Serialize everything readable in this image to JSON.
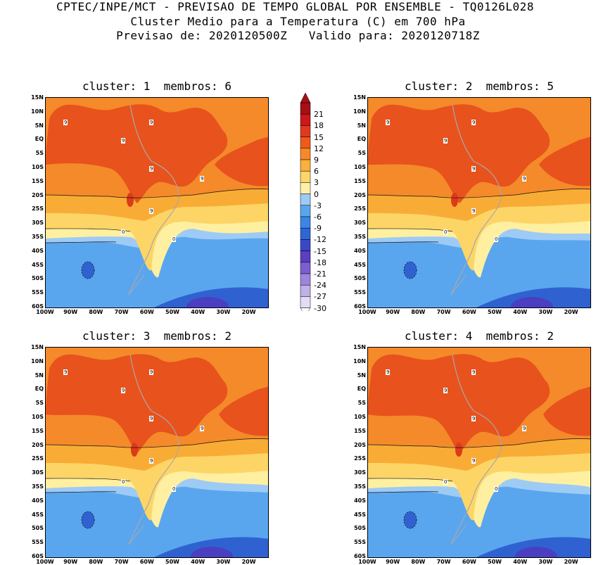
{
  "header": {
    "line1": "CPTEC/INPE/MCT - PREVISAO DE TEMPO GLOBAL POR ENSEMBLE - TQ0126L028",
    "line2": "Cluster Medio para a Temperatura (C) em 700 hPa",
    "line3": "Previsao de: 2020120500Z   Valido para: 2020120718Z"
  },
  "panels": [
    {
      "title": "cluster: 1  membros: 6"
    },
    {
      "title": "cluster: 2  membros: 5"
    },
    {
      "title": "cluster: 3  membros: 2"
    },
    {
      "title": "cluster: 4  membros: 2"
    }
  ],
  "axes": {
    "lat_labels": [
      "15N",
      "10N",
      "5N",
      "EQ",
      "5S",
      "10S",
      "15S",
      "20S",
      "25S",
      "30S",
      "35S",
      "40S",
      "45S",
      "50S",
      "55S",
      "60S"
    ],
    "lon_labels": [
      "100W",
      "90W",
      "80W",
      "70W",
      "60W",
      "50W",
      "40W",
      "30W",
      "20W"
    ]
  },
  "contour_label_text": {
    "nine": "9",
    "zero": "0"
  },
  "colorbar": {
    "levels": [
      "21",
      "18",
      "15",
      "12",
      "9",
      "6",
      "3",
      "0",
      "-3",
      "-6",
      "-9",
      "-12",
      "-15",
      "-18",
      "-21",
      "-24",
      "-27",
      "-30"
    ],
    "colors": [
      "#a50f15",
      "#cb181d",
      "#e03a1e",
      "#ef5b19",
      "#f7892a",
      "#fbb03b",
      "#fdd66a",
      "#fef0a8",
      "#9ecbf5",
      "#5aa6ee",
      "#3a86e6",
      "#2f66d6",
      "#3a48c8",
      "#5a3fc0",
      "#7d5ed0",
      "#9c86dc",
      "#c0b0e8",
      "#e2dcf4"
    ]
  }
}
